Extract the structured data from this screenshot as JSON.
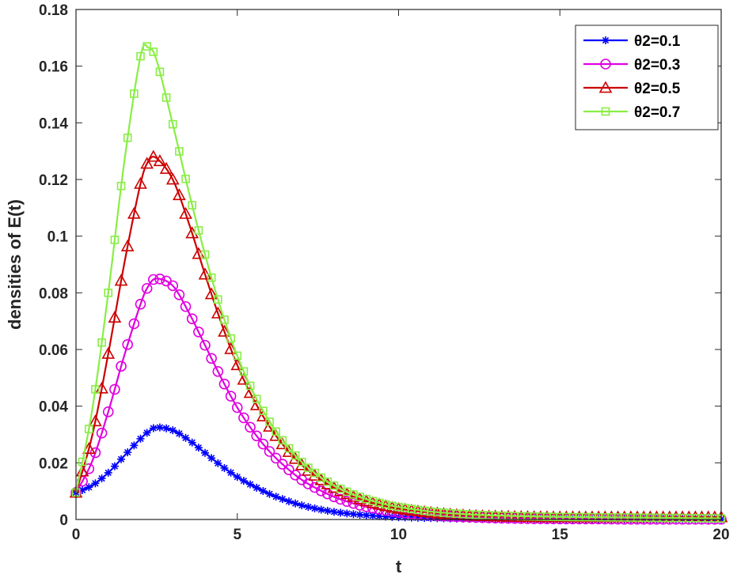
{
  "chart_data": {
    "type": "line",
    "title": "",
    "xlabel": "t",
    "ylabel": "densities of E(t)",
    "xlim": [
      0,
      20
    ],
    "ylim": [
      0,
      0.18
    ],
    "xticks": [
      0,
      5,
      10,
      15,
      20
    ],
    "yticks": [
      0,
      0.02,
      0.04,
      0.06,
      0.08,
      0.1,
      0.12,
      0.14,
      0.16,
      0.18
    ],
    "ytick_labels": [
      "0",
      "0.02",
      "0.04",
      "0.06",
      "0.08",
      "0.1",
      "0.12",
      "0.14",
      "0.16",
      "0.18"
    ],
    "grid": false,
    "legend": "top-right",
    "x": [
      0,
      0.5,
      1,
      1.5,
      2,
      2.25,
      2.5,
      3,
      3.5,
      4,
      4.5,
      5,
      5.5,
      6,
      6.5,
      7,
      7.5,
      8,
      8.5,
      9,
      9.5,
      10,
      11,
      12,
      13,
      14,
      15,
      16,
      17,
      18,
      19,
      20
    ],
    "series": [
      {
        "name": "θ2=0.1",
        "color": "#0000ff",
        "marker": "asterisk",
        "values": [
          0.0095,
          0.012,
          0.0165,
          0.0225,
          0.0285,
          0.031,
          0.0325,
          0.0315,
          0.028,
          0.0235,
          0.019,
          0.015,
          0.0118,
          0.009,
          0.0068,
          0.005,
          0.0037,
          0.0027,
          0.002,
          0.0015,
          0.0011,
          0.0008,
          0.0005,
          0.0003,
          0.0002,
          0.0002,
          0.0001,
          0.0001,
          0.0001,
          0.0001,
          0.0001,
          0.0001
        ]
      },
      {
        "name": "θ2=0.3",
        "color": "#e000e0",
        "marker": "circle",
        "values": [
          0.0095,
          0.0205,
          0.038,
          0.058,
          0.076,
          0.0825,
          0.085,
          0.0825,
          0.073,
          0.0615,
          0.05,
          0.0395,
          0.031,
          0.024,
          0.0185,
          0.014,
          0.0107,
          0.008,
          0.006,
          0.0045,
          0.0034,
          0.0025,
          0.0015,
          0.0009,
          0.0005,
          0.0003,
          0.0002,
          0.0002,
          0.0001,
          0.0001,
          0.0001,
          0.0001
        ]
      },
      {
        "name": "θ2=0.5",
        "color": "#cc0000",
        "marker": "triangle",
        "values": [
          0.0095,
          0.0295,
          0.0585,
          0.0905,
          0.1185,
          0.1265,
          0.1275,
          0.12,
          0.1045,
          0.0865,
          0.0695,
          0.0545,
          0.0425,
          0.0328,
          0.0252,
          0.0192,
          0.0147,
          0.0112,
          0.0085,
          0.0065,
          0.005,
          0.0038,
          0.0024,
          0.0015,
          0.0011,
          0.0009,
          0.0008,
          0.0008,
          0.0008,
          0.0008,
          0.0008,
          0.0008
        ]
      },
      {
        "name": "θ2=0.7",
        "color": "#88ee44",
        "marker": "square",
        "values": [
          0.0095,
          0.0385,
          0.08,
          0.1265,
          0.1635,
          0.1665,
          0.162,
          0.1395,
          0.1155,
          0.0935,
          0.074,
          0.0578,
          0.0448,
          0.0345,
          0.0265,
          0.0203,
          0.0156,
          0.012,
          0.0093,
          0.0072,
          0.0056,
          0.0044,
          0.0028,
          0.0019,
          0.0014,
          0.0011,
          0.0009,
          0.0008,
          0.0007,
          0.0006,
          0.0005,
          0.0004
        ]
      }
    ]
  }
}
